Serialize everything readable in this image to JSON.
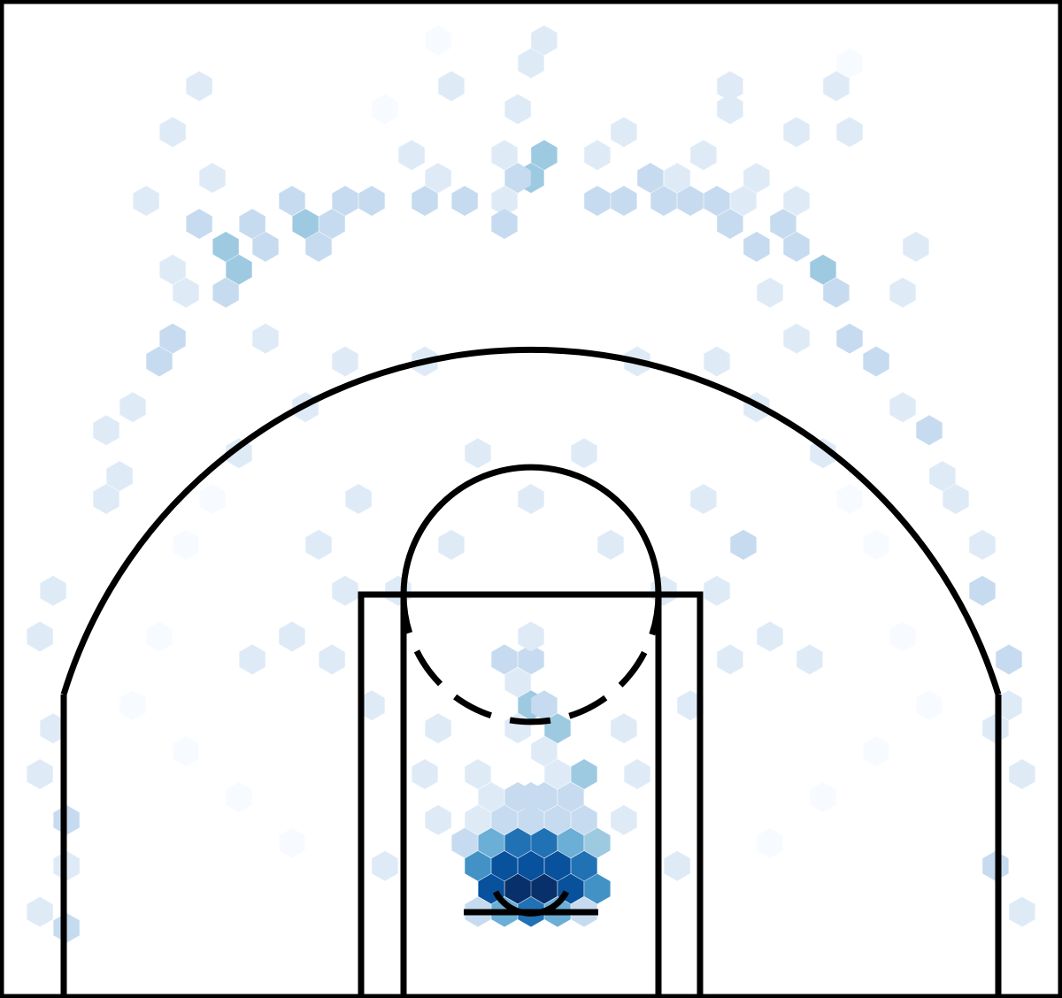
{
  "chart_data": {
    "type": "heatmap",
    "subtype": "hexbin-shot-chart",
    "title": "",
    "xlabel": "",
    "ylabel": "",
    "units": "feet",
    "xlim": [
      -25,
      25
    ],
    "ylim": [
      -5,
      42
    ],
    "hoop": [
      0,
      0
    ],
    "colormap": {
      "name": "Blues",
      "max_count": 16,
      "stops": [
        "#f7fbff",
        "#deebf7",
        "#c6dbef",
        "#9ecae1",
        "#6baed6",
        "#4292c6",
        "#2171b5",
        "#08519c",
        "#08306b"
      ]
    },
    "hex_cells": [
      {
        "x": -0.62,
        "y": 0.14,
        "count": 16
      },
      {
        "x": 0.62,
        "y": 0.14,
        "count": 16
      },
      {
        "x": -1.87,
        "y": 0.14,
        "count": 15
      },
      {
        "x": 1.87,
        "y": 0.14,
        "count": 15
      },
      {
        "x": 0.0,
        "y": 1.22,
        "count": 14
      },
      {
        "x": -1.25,
        "y": 1.22,
        "count": 14
      },
      {
        "x": 1.25,
        "y": 1.22,
        "count": 15
      },
      {
        "x": -2.5,
        "y": 1.22,
        "count": 11
      },
      {
        "x": 2.5,
        "y": 1.22,
        "count": 12
      },
      {
        "x": 0.0,
        "y": -0.94,
        "count": 12
      },
      {
        "x": -1.25,
        "y": -0.94,
        "count": 8
      },
      {
        "x": 1.25,
        "y": -0.94,
        "count": 8
      },
      {
        "x": -2.5,
        "y": -0.94,
        "count": 4
      },
      {
        "x": 2.5,
        "y": -0.94,
        "count": 4
      },
      {
        "x": 3.12,
        "y": 0.14,
        "count": 11
      },
      {
        "x": 0.62,
        "y": 2.3,
        "count": 12
      },
      {
        "x": -0.62,
        "y": 2.3,
        "count": 12
      },
      {
        "x": 1.87,
        "y": 2.3,
        "count": 9
      },
      {
        "x": -1.87,
        "y": 2.3,
        "count": 9
      },
      {
        "x": 3.12,
        "y": 2.3,
        "count": 6
      },
      {
        "x": -3.12,
        "y": 2.3,
        "count": 4
      },
      {
        "x": 0.0,
        "y": 3.38,
        "count": 4
      },
      {
        "x": -1.25,
        "y": 3.38,
        "count": 4
      },
      {
        "x": 1.25,
        "y": 3.38,
        "count": 4
      },
      {
        "x": 2.5,
        "y": 3.38,
        "count": 4
      },
      {
        "x": -2.5,
        "y": 3.38,
        "count": 3
      },
      {
        "x": 0.0,
        "y": 4.46,
        "count": 4
      },
      {
        "x": -0.62,
        "y": 4.46,
        "count": 4
      },
      {
        "x": 0.62,
        "y": 4.46,
        "count": 4
      },
      {
        "x": 1.87,
        "y": 4.46,
        "count": 4
      },
      {
        "x": -1.87,
        "y": 4.46,
        "count": 3
      },
      {
        "x": 2.5,
        "y": 5.54,
        "count": 6
      },
      {
        "x": -2.5,
        "y": 5.54,
        "count": 3
      },
      {
        "x": 1.25,
        "y": 5.54,
        "count": 3
      },
      {
        "x": 0.62,
        "y": 6.62,
        "count": 3
      },
      {
        "x": 1.25,
        "y": 7.7,
        "count": 6
      },
      {
        "x": -0.62,
        "y": 7.7,
        "count": 3
      },
      {
        "x": 0.0,
        "y": 8.78,
        "count": 6
      },
      {
        "x": 0.62,
        "y": 8.78,
        "count": 4
      },
      {
        "x": -0.62,
        "y": 9.86,
        "count": 3
      },
      {
        "x": 0.0,
        "y": 10.94,
        "count": 5
      },
      {
        "x": -1.25,
        "y": 10.94,
        "count": 5
      },
      {
        "x": 0.0,
        "y": 12.02,
        "count": 3
      },
      {
        "x": -6.88,
        "y": 1.22,
        "count": 2
      },
      {
        "x": 6.88,
        "y": 1.22,
        "count": 2
      },
      {
        "x": -4.37,
        "y": 3.38,
        "count": 2
      },
      {
        "x": 4.37,
        "y": 3.38,
        "count": 2
      },
      {
        "x": -5.0,
        "y": 5.54,
        "count": 3
      },
      {
        "x": 5.0,
        "y": 5.54,
        "count": 3
      },
      {
        "x": 4.37,
        "y": 7.7,
        "count": 3
      },
      {
        "x": -4.37,
        "y": 7.7,
        "count": 2
      },
      {
        "x": 7.5,
        "y": 8.78,
        "count": 3
      },
      {
        "x": -7.5,
        "y": 8.78,
        "count": 2
      },
      {
        "x": 9.37,
        "y": 10.94,
        "count": 3
      },
      {
        "x": -9.37,
        "y": 10.94,
        "count": 2
      },
      {
        "x": 8.75,
        "y": 14.18,
        "count": 3
      },
      {
        "x": -8.75,
        "y": 14.18,
        "count": 3
      },
      {
        "x": 10.0,
        "y": 16.34,
        "count": 4
      },
      {
        "x": -10.0,
        "y": 16.34,
        "count": 3
      },
      {
        "x": 8.12,
        "y": 18.5,
        "count": 3
      },
      {
        "x": -8.12,
        "y": 18.5,
        "count": 3
      },
      {
        "x": -11.25,
        "y": 12.02,
        "count": 2
      },
      {
        "x": 11.25,
        "y": 12.02,
        "count": 2
      },
      {
        "x": -13.12,
        "y": 10.94,
        "count": 2
      },
      {
        "x": 13.12,
        "y": 10.94,
        "count": 2
      },
      {
        "x": -6.25,
        "y": 14.18,
        "count": 2
      },
      {
        "x": 6.25,
        "y": 14.18,
        "count": 2
      },
      {
        "x": -3.75,
        "y": 16.34,
        "count": 2
      },
      {
        "x": 3.75,
        "y": 16.34,
        "count": 2
      },
      {
        "x": 0.0,
        "y": 18.5,
        "count": 2
      },
      {
        "x": -2.5,
        "y": 20.66,
        "count": 2
      },
      {
        "x": 2.5,
        "y": 20.66,
        "count": 2
      },
      {
        "x": -5.0,
        "y": 24.98,
        "count": 2
      },
      {
        "x": 5.0,
        "y": 24.98,
        "count": 2
      },
      {
        "x": -21.87,
        "y": 3.38,
        "count": 4
      },
      {
        "x": -23.12,
        "y": 5.54,
        "count": 3
      },
      {
        "x": -21.87,
        "y": 1.22,
        "count": 2
      },
      {
        "x": -23.12,
        "y": -0.94,
        "count": 3
      },
      {
        "x": -21.87,
        "y": -1.7,
        "count": 4
      },
      {
        "x": -22.5,
        "y": 7.7,
        "count": 3
      },
      {
        "x": 21.87,
        "y": 1.22,
        "count": 4
      },
      {
        "x": 23.12,
        "y": -0.94,
        "count": 3
      },
      {
        "x": 23.12,
        "y": 5.54,
        "count": 3
      },
      {
        "x": 22.5,
        "y": 8.78,
        "count": 2
      },
      {
        "x": 21.87,
        "y": 7.7,
        "count": 3
      },
      {
        "x": 22.5,
        "y": 10.94,
        "count": 4
      },
      {
        "x": -23.12,
        "y": 12.02,
        "count": 3
      },
      {
        "x": -22.5,
        "y": 14.18,
        "count": 2
      },
      {
        "x": 21.25,
        "y": 14.18,
        "count": 4
      },
      {
        "x": 21.25,
        "y": 16.34,
        "count": 2
      },
      {
        "x": -20.0,
        "y": 18.5,
        "count": 2
      },
      {
        "x": 20.0,
        "y": 18.5,
        "count": 2
      },
      {
        "x": 19.37,
        "y": 19.58,
        "count": 2
      },
      {
        "x": -19.37,
        "y": 19.58,
        "count": 2
      },
      {
        "x": -18.75,
        "y": 22.82,
        "count": 3
      },
      {
        "x": -20.0,
        "y": 21.74,
        "count": 3
      },
      {
        "x": -17.5,
        "y": 24.98,
        "count": 5
      },
      {
        "x": -16.87,
        "y": 26.06,
        "count": 4
      },
      {
        "x": -16.25,
        "y": 28.22,
        "count": 3
      },
      {
        "x": 18.75,
        "y": 21.74,
        "count": 4
      },
      {
        "x": 17.5,
        "y": 22.82,
        "count": 3
      },
      {
        "x": 16.25,
        "y": 24.98,
        "count": 4
      },
      {
        "x": 15.0,
        "y": 26.06,
        "count": 4
      },
      {
        "x": 14.37,
        "y": 28.22,
        "count": 5
      },
      {
        "x": 13.75,
        "y": 29.3,
        "count": 7
      },
      {
        "x": 12.5,
        "y": 30.38,
        "count": 5
      },
      {
        "x": 11.87,
        "y": 31.46,
        "count": 4
      },
      {
        "x": 10.62,
        "y": 30.38,
        "count": 5
      },
      {
        "x": 11.25,
        "y": 28.22,
        "count": 3
      },
      {
        "x": 9.37,
        "y": 31.46,
        "count": 4
      },
      {
        "x": 8.75,
        "y": 32.54,
        "count": 4
      },
      {
        "x": 10.0,
        "y": 32.54,
        "count": 3
      },
      {
        "x": 5.62,
        "y": 33.62,
        "count": 4
      },
      {
        "x": 6.88,
        "y": 33.62,
        "count": 3
      },
      {
        "x": 8.12,
        "y": 34.7,
        "count": 3
      },
      {
        "x": 3.12,
        "y": 34.7,
        "count": 3
      },
      {
        "x": -13.12,
        "y": 31.46,
        "count": 4
      },
      {
        "x": -14.37,
        "y": 30.38,
        "count": 6
      },
      {
        "x": -15.62,
        "y": 31.46,
        "count": 4
      },
      {
        "x": -13.75,
        "y": 29.3,
        "count": 6
      },
      {
        "x": -14.37,
        "y": 28.22,
        "count": 4
      },
      {
        "x": -12.5,
        "y": 30.38,
        "count": 4
      },
      {
        "x": -10.0,
        "y": 30.38,
        "count": 5
      },
      {
        "x": -9.37,
        "y": 31.46,
        "count": 5
      },
      {
        "x": -8.75,
        "y": 32.54,
        "count": 5
      },
      {
        "x": -10.62,
        "y": 31.46,
        "count": 6
      },
      {
        "x": -11.25,
        "y": 32.54,
        "count": 4
      },
      {
        "x": -7.5,
        "y": 32.54,
        "count": 4
      },
      {
        "x": -5.0,
        "y": 32.54,
        "count": 5
      },
      {
        "x": -3.12,
        "y": 32.54,
        "count": 4
      },
      {
        "x": -1.25,
        "y": 32.54,
        "count": 3
      },
      {
        "x": -1.25,
        "y": 34.7,
        "count": 3
      },
      {
        "x": 0.62,
        "y": 34.7,
        "count": 6
      },
      {
        "x": 0.0,
        "y": 33.62,
        "count": 6
      },
      {
        "x": -0.62,
        "y": 33.62,
        "count": 4
      },
      {
        "x": -1.25,
        "y": 31.46,
        "count": 5
      },
      {
        "x": 3.12,
        "y": 32.54,
        "count": 5
      },
      {
        "x": 4.37,
        "y": 32.54,
        "count": 4
      },
      {
        "x": 6.25,
        "y": 32.54,
        "count": 4
      },
      {
        "x": 7.5,
        "y": 32.54,
        "count": 5
      },
      {
        "x": -5.62,
        "y": 34.7,
        "count": 3
      },
      {
        "x": -4.37,
        "y": 33.62,
        "count": 3
      },
      {
        "x": 10.62,
        "y": 33.62,
        "count": 3
      },
      {
        "x": 12.5,
        "y": 32.54,
        "count": 3
      },
      {
        "x": -0.62,
        "y": 36.86,
        "count": 3
      },
      {
        "x": -3.75,
        "y": 37.94,
        "count": 2
      },
      {
        "x": 4.37,
        "y": 35.78,
        "count": 2
      },
      {
        "x": 14.37,
        "y": 37.94,
        "count": 2
      },
      {
        "x": -15.62,
        "y": 37.94,
        "count": 2
      },
      {
        "x": 9.37,
        "y": 37.94,
        "count": 2
      },
      {
        "x": 0.0,
        "y": 39.02,
        "count": 2
      },
      {
        "x": 0.62,
        "y": 40.1,
        "count": 2
      },
      {
        "x": -16.87,
        "y": 35.78,
        "count": 2
      },
      {
        "x": 15.0,
        "y": 35.78,
        "count": 2
      },
      {
        "x": -15.0,
        "y": 33.62,
        "count": 2
      },
      {
        "x": -4.37,
        "y": 40.1,
        "count": 1
      },
      {
        "x": 15.0,
        "y": 39.02,
        "count": 1
      },
      {
        "x": -6.88,
        "y": 36.86,
        "count": 1
      },
      {
        "x": 9.37,
        "y": 36.86,
        "count": 2
      },
      {
        "x": 12.5,
        "y": 35.78,
        "count": 2
      },
      {
        "x": -18.12,
        "y": 32.54,
        "count": 2
      },
      {
        "x": -16.87,
        "y": 29.3,
        "count": 2
      },
      {
        "x": 18.12,
        "y": 30.38,
        "count": 2
      },
      {
        "x": 17.5,
        "y": 28.22,
        "count": 2
      },
      {
        "x": -12.5,
        "y": 26.06,
        "count": 2
      },
      {
        "x": 12.5,
        "y": 26.06,
        "count": 2
      },
      {
        "x": -8.75,
        "y": 24.98,
        "count": 2
      },
      {
        "x": 8.75,
        "y": 24.98,
        "count": 2
      },
      {
        "x": -10.62,
        "y": 22.82,
        "count": 2
      },
      {
        "x": 10.62,
        "y": 22.82,
        "count": 2
      },
      {
        "x": -13.75,
        "y": 20.66,
        "count": 2
      },
      {
        "x": 13.75,
        "y": 20.66,
        "count": 2
      },
      {
        "x": -15.0,
        "y": 18.5,
        "count": 1
      },
      {
        "x": 15.0,
        "y": 18.5,
        "count": 1
      },
      {
        "x": -16.25,
        "y": 16.34,
        "count": 1
      },
      {
        "x": 16.25,
        "y": 16.34,
        "count": 1
      },
      {
        "x": -17.5,
        "y": 12.02,
        "count": 1
      },
      {
        "x": 17.5,
        "y": 12.02,
        "count": 1
      },
      {
        "x": -18.75,
        "y": 8.78,
        "count": 1
      },
      {
        "x": 18.75,
        "y": 8.78,
        "count": 1
      },
      {
        "x": -16.25,
        "y": 6.62,
        "count": 1
      },
      {
        "x": 16.25,
        "y": 6.62,
        "count": 1
      },
      {
        "x": -13.75,
        "y": 4.46,
        "count": 1
      },
      {
        "x": 13.75,
        "y": 4.46,
        "count": 1
      },
      {
        "x": -11.25,
        "y": 2.3,
        "count": 1
      },
      {
        "x": 11.25,
        "y": 2.3,
        "count": 1
      }
    ]
  }
}
